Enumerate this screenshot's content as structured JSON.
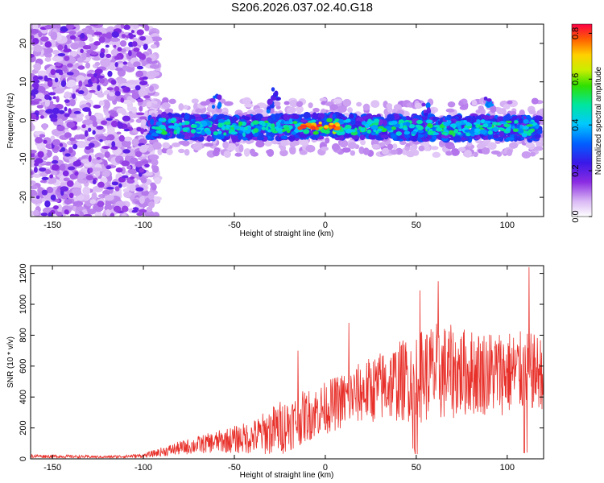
{
  "title": "S206.2026.037.02.40.G18",
  "chart_data": [
    {
      "type": "heatmap",
      "xlabel": "Height of straight line (km)",
      "ylabel": "Frequency (Hz)",
      "xlim": [
        -162,
        120
      ],
      "ylim": [
        -25,
        25
      ],
      "xticks": [
        "-150",
        "-100",
        "-50",
        "0",
        "50",
        "100"
      ],
      "yticks": [
        "20",
        "10",
        "0",
        "-10",
        "-20"
      ],
      "colorbar": {
        "label": "Normalized spectral amplitude",
        "range": [
          0.0,
          0.84
        ],
        "ticks": [
          "0.0",
          "0.2",
          "0.4",
          "0.6",
          "0.8"
        ]
      },
      "features": {
        "noise_region_x": [
          -162,
          -98
        ],
        "signal_band_center_hz": [
          {
            "x": -95,
            "f": -1.5
          },
          {
            "x": -50,
            "f": -2
          },
          {
            "x": 0,
            "f": -1.5
          },
          {
            "x": 50,
            "f": -2
          },
          {
            "x": 118,
            "f": -2
          }
        ],
        "signal_band_halfwidth_hz": 3,
        "peak_amplitude_x": [
          -15,
          5
        ]
      }
    },
    {
      "type": "line",
      "xlabel": "Height of straight line (km)",
      "ylabel": "SNR (10 * v/v)",
      "xlim": [
        -162,
        120
      ],
      "ylim": [
        0,
        1250
      ],
      "xticks": [
        "-150",
        "-100",
        "-50",
        "0",
        "50",
        "100"
      ],
      "yticks": [
        "0",
        "200",
        "400",
        "600",
        "800",
        "1000",
        "1200"
      ],
      "color": "#e8302a",
      "envelope": [
        {
          "x": -162,
          "mean": 18,
          "amp": 12
        },
        {
          "x": -120,
          "mean": 12,
          "amp": 8
        },
        {
          "x": -100,
          "mean": 20,
          "amp": 14
        },
        {
          "x": -80,
          "mean": 70,
          "amp": 45
        },
        {
          "x": -60,
          "mean": 110,
          "amp": 70
        },
        {
          "x": -40,
          "mean": 140,
          "amp": 110
        },
        {
          "x": -25,
          "mean": 200,
          "amp": 180
        },
        {
          "x": -10,
          "mean": 280,
          "amp": 170
        },
        {
          "x": 0,
          "mean": 330,
          "amp": 170
        },
        {
          "x": 20,
          "mean": 430,
          "amp": 200
        },
        {
          "x": 40,
          "mean": 500,
          "amp": 260
        },
        {
          "x": 60,
          "mean": 560,
          "amp": 330
        },
        {
          "x": 80,
          "mean": 560,
          "amp": 280
        },
        {
          "x": 100,
          "mean": 560,
          "amp": 280
        },
        {
          "x": 120,
          "mean": 560,
          "amp": 240
        }
      ],
      "spikes": [
        {
          "x": -15,
          "y": 700
        },
        {
          "x": 13,
          "y": 880
        },
        {
          "x": 52,
          "y": 1090
        },
        {
          "x": 62,
          "y": 1150
        },
        {
          "x": 112,
          "y": 1240
        }
      ]
    }
  ]
}
